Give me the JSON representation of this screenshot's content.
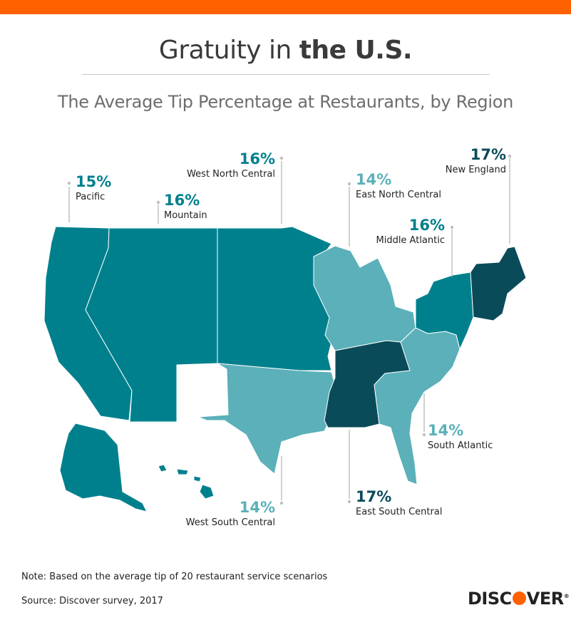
{
  "header": {
    "title_regular": "Gratuity in ",
    "title_bold": "the U.S.",
    "subtitle": "The Average Tip Percentage at Restaurants, by Region"
  },
  "colors": {
    "accent_bar": "#ff6000",
    "tip_14": "#5bb0b9",
    "tip_15_16": "#00808d",
    "tip_17": "#0a4b59"
  },
  "regions": {
    "pacific": {
      "pct": "15%",
      "name": "Pacific",
      "value": 15,
      "color": "#00808d"
    },
    "mountain": {
      "pct": "16%",
      "name": "Mountain",
      "value": 16,
      "color": "#00808d"
    },
    "west_north_central": {
      "pct": "16%",
      "name": "West North Central",
      "value": 16,
      "color": "#00808d"
    },
    "east_north_central": {
      "pct": "14%",
      "name": "East North Central",
      "value": 14,
      "color": "#5bb0b9"
    },
    "new_england": {
      "pct": "17%",
      "name": "New England",
      "value": 17,
      "color": "#0a4b59"
    },
    "middle_atlantic": {
      "pct": "16%",
      "name": "Middle Atlantic",
      "value": 16,
      "color": "#00808d"
    },
    "south_atlantic": {
      "pct": "14%",
      "name": "South Atlantic",
      "value": 14,
      "color": "#5bb0b9"
    },
    "east_south_central": {
      "pct": "17%",
      "name": "East South Central",
      "value": 17,
      "color": "#0a4b59"
    },
    "west_south_central": {
      "pct": "14%",
      "name": "West South Central",
      "value": 14,
      "color": "#5bb0b9"
    }
  },
  "footer": {
    "note": "Note: Based on the average tip of 20 restaurant service scenarios",
    "source": "Source: Discover survey, 2017",
    "logo_left": "DISC",
    "logo_right": "VER",
    "logo_mark": "®"
  }
}
